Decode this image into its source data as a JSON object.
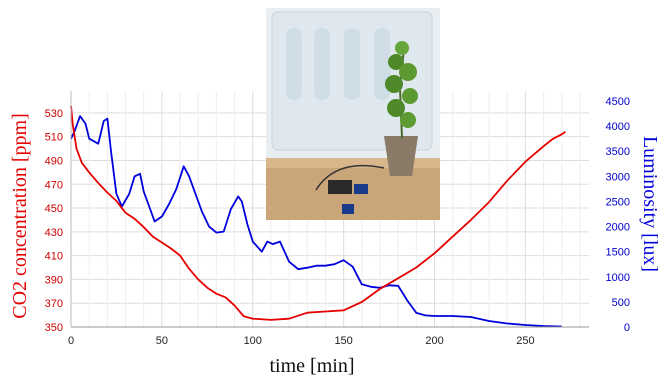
{
  "chart_data": {
    "type": "line",
    "xlabel": "time [min]",
    "ylabel_left": "CO2 concentration [ppm]",
    "ylabel_right": "Luminosity [lux]",
    "xlim": [
      0,
      285
    ],
    "x_ticks": [
      0,
      50,
      100,
      150,
      200,
      250
    ],
    "ylim_left": [
      350,
      540
    ],
    "y_ticks_left": [
      350,
      370,
      390,
      410,
      430,
      450,
      470,
      490,
      510,
      530
    ],
    "ylim_right": [
      0,
      4500
    ],
    "y_ticks_right": [
      0,
      500,
      1000,
      1500,
      2000,
      2500,
      3000,
      3500,
      4000,
      4500
    ],
    "grid": true,
    "colors": {
      "co2": "#e60000",
      "lux": "#0000dd",
      "grid": "#dddddd"
    },
    "series": [
      {
        "axis": "left",
        "x": [
          0,
          1,
          3,
          6,
          10,
          15,
          20,
          25,
          30,
          35,
          40,
          45,
          50,
          55,
          60,
          65,
          70,
          75,
          80,
          85,
          90,
          95,
          100,
          110,
          120,
          130,
          140,
          150,
          160,
          170,
          180,
          190,
          200,
          210,
          220,
          230,
          240,
          250,
          260,
          265,
          270,
          272
        ],
        "values": [
          536,
          520,
          500,
          488,
          480,
          471,
          463,
          456,
          446,
          441,
          434,
          426,
          421,
          416,
          410,
          399,
          390,
          383,
          378,
          375,
          368,
          359,
          357,
          356,
          357,
          362,
          363,
          364,
          371,
          382,
          391,
          400,
          412,
          426,
          440,
          455,
          473,
          489,
          502,
          508,
          512,
          514
        ]
      },
      {
        "axis": "right",
        "x": [
          0,
          2,
          5,
          8,
          10,
          15,
          18,
          20,
          22,
          25,
          28,
          32,
          35,
          38,
          40,
          43,
          46,
          50,
          54,
          58,
          62,
          65,
          68,
          72,
          76,
          80,
          84,
          88,
          92,
          94,
          97,
          100,
          105,
          108,
          111,
          115,
          120,
          125,
          130,
          135,
          140,
          145,
          150,
          155,
          160,
          165,
          170,
          175,
          180,
          185,
          190,
          195,
          200,
          210,
          220,
          230,
          240,
          250,
          260,
          270
        ],
        "values": [
          3750,
          3900,
          4200,
          4050,
          3750,
          3650,
          4100,
          4150,
          3500,
          2650,
          2400,
          2650,
          3000,
          3050,
          2700,
          2400,
          2100,
          2200,
          2450,
          2750,
          3200,
          3000,
          2700,
          2300,
          2000,
          1880,
          1900,
          2350,
          2600,
          2500,
          2050,
          1700,
          1500,
          1700,
          1650,
          1700,
          1300,
          1150,
          1180,
          1220,
          1220,
          1250,
          1330,
          1200,
          850,
          800,
          780,
          830,
          820,
          530,
          280,
          230,
          220,
          220,
          200,
          120,
          70,
          40,
          20,
          10
        ]
      }
    ]
  }
}
